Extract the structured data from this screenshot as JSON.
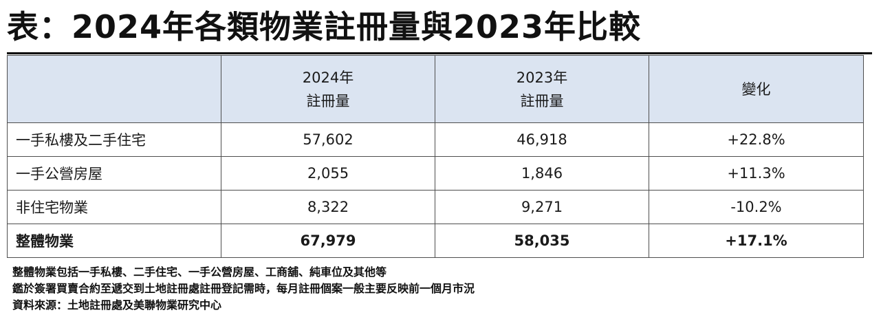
{
  "title": "表：2024年各類物業註冊量與2023年比較",
  "table": {
    "headers": [
      {
        "line1": "",
        "line2": ""
      },
      {
        "line1": "2024年",
        "line2": "註冊量"
      },
      {
        "line1": "2023年",
        "line2": "註冊量"
      },
      {
        "line1": "變化",
        "line2": ""
      }
    ],
    "rows": [
      {
        "category": "一手私樓及二手住宅",
        "y2024": "57,602",
        "y2023": "46,918",
        "change": "+22.8%"
      },
      {
        "category": "一手公營房屋",
        "y2024": "2,055",
        "y2023": "1,846",
        "change": "+11.3%"
      },
      {
        "category": "非住宅物業",
        "y2024": "8,322",
        "y2023": "9,271",
        "change": "-10.2%"
      },
      {
        "category": "整體物業",
        "y2024": "67,979",
        "y2023": "58,035",
        "change": "+17.1%"
      }
    ]
  },
  "notes": [
    "整體物業包括一手私樓、二手住宅、一手公營房屋、工商舖、純車位及其他等",
    "鑑於簽署買賣合約至遞交到土地註冊處註冊登記需時，每月註冊個案一般主要反映前一個月市況",
    "資料來源：土地註冊處及美聯物業研究中心"
  ]
}
